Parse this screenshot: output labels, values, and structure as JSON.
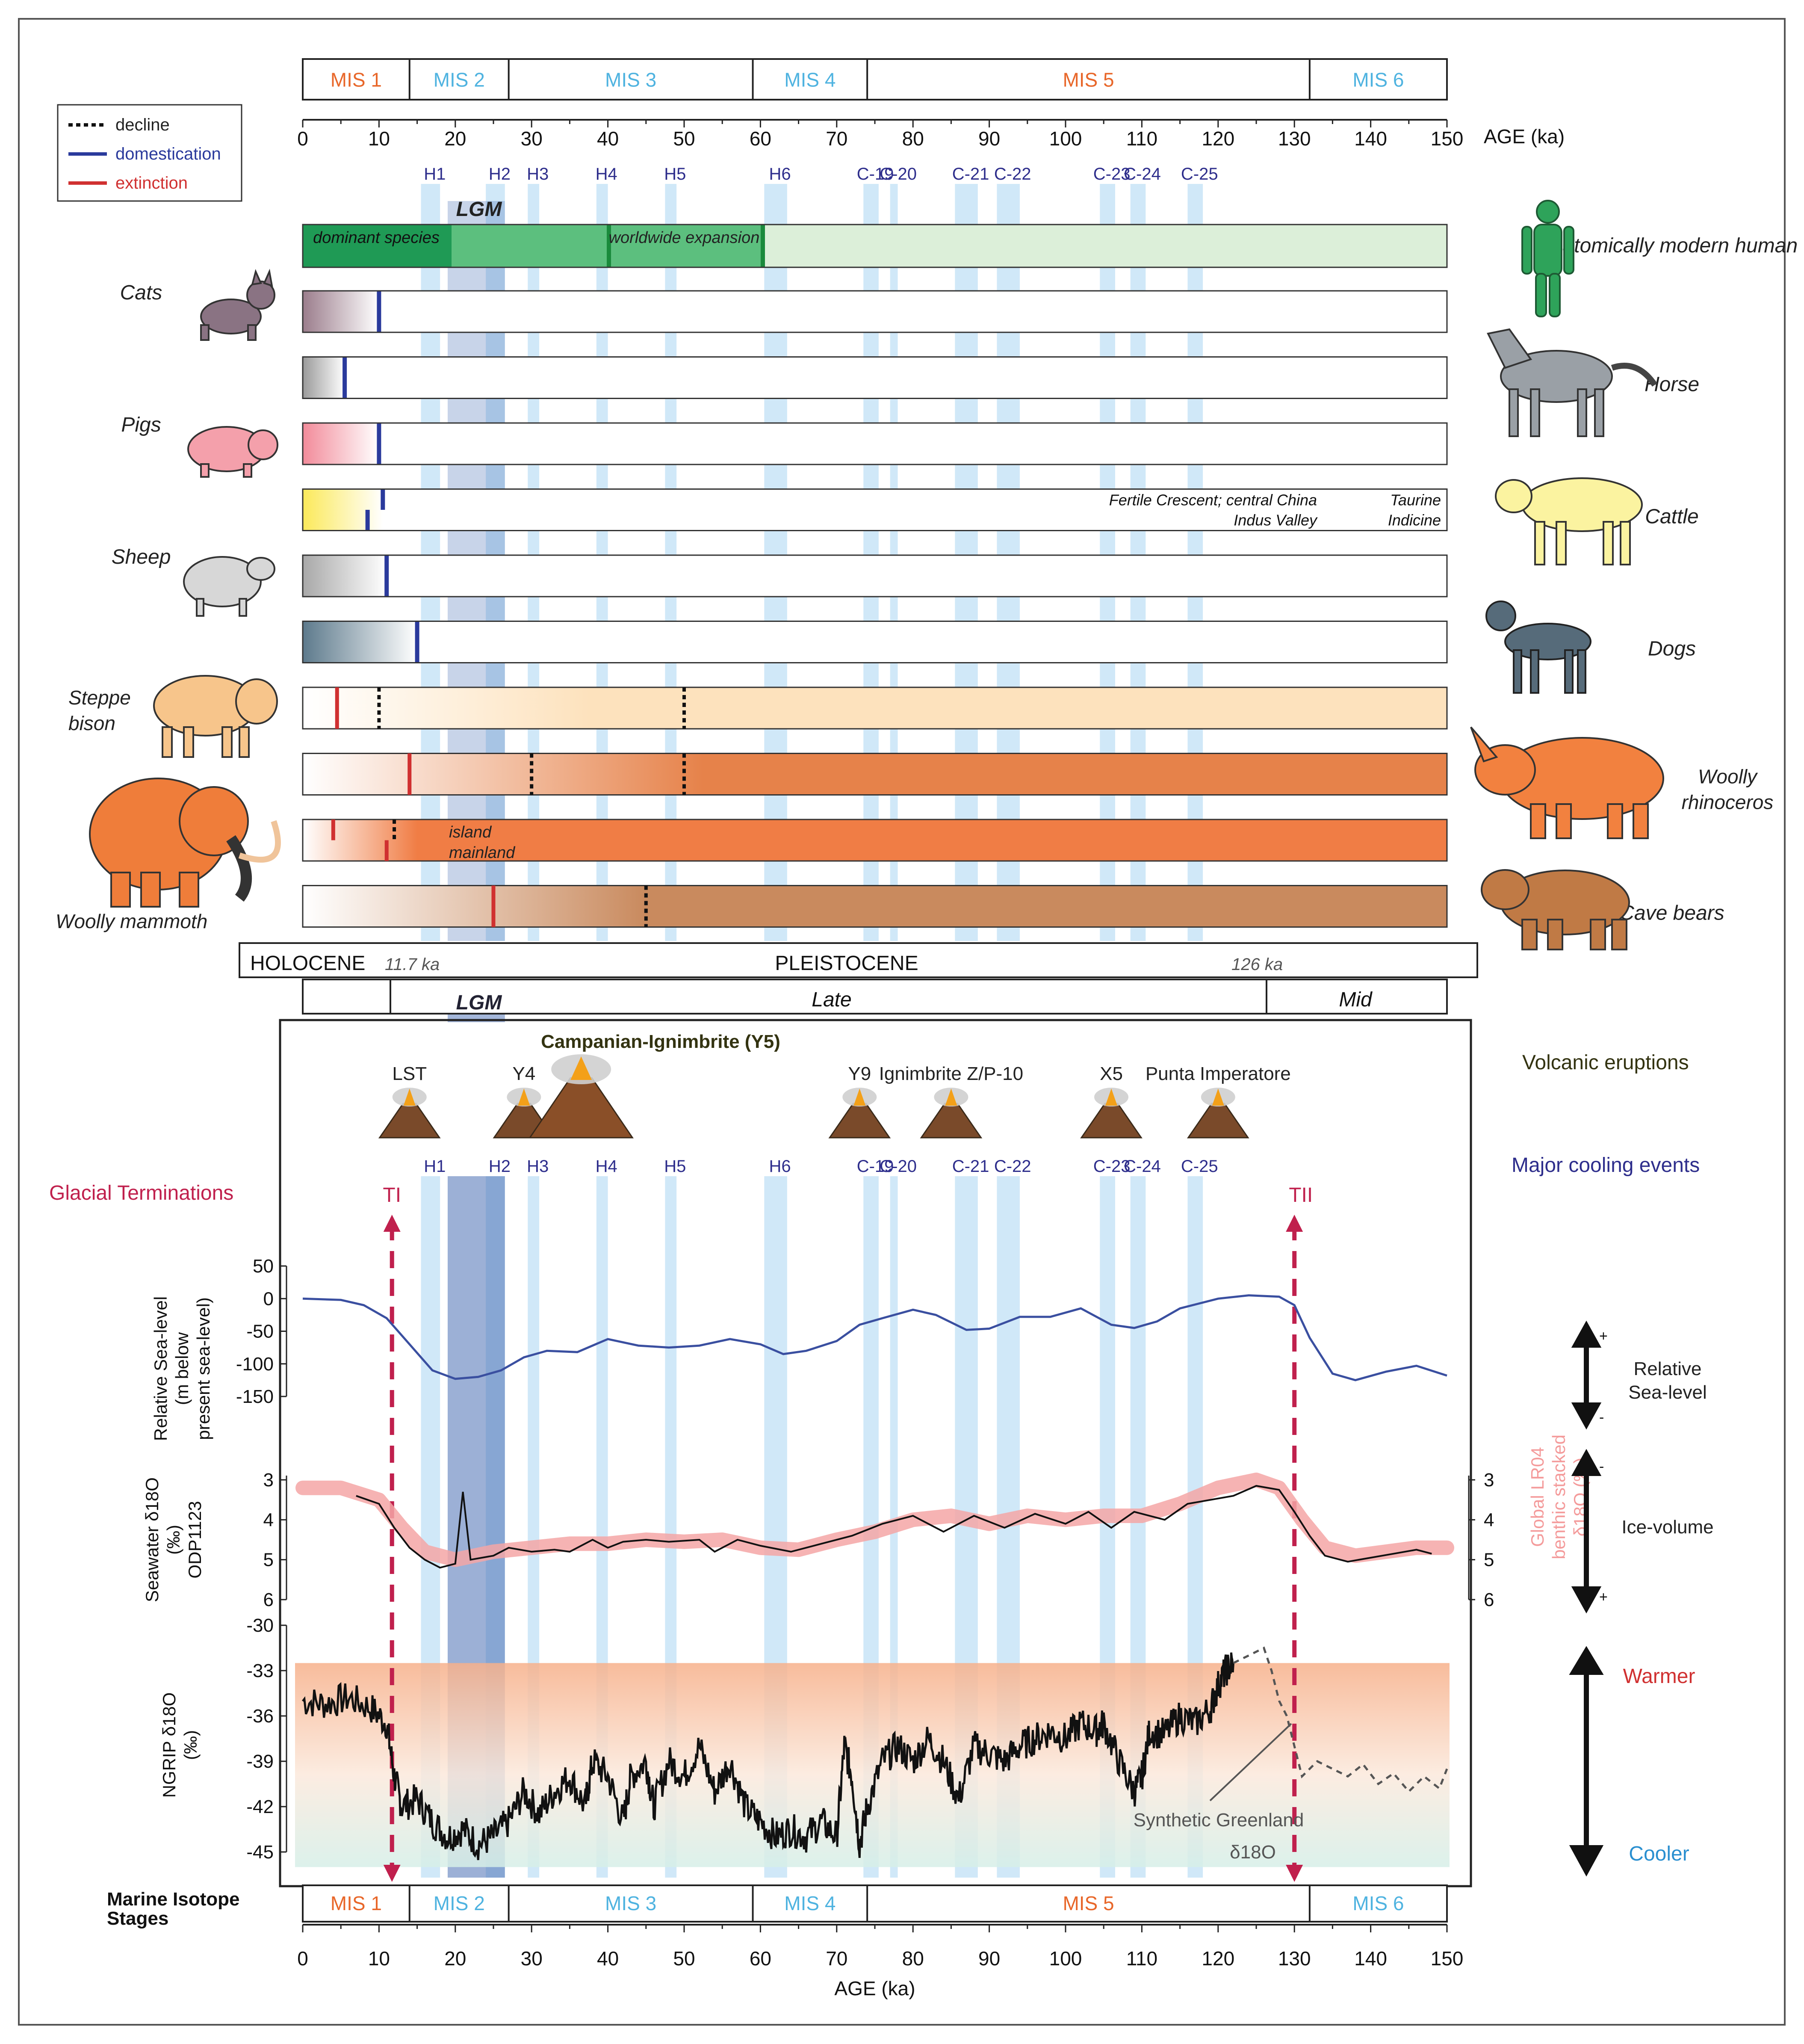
{
  "colors": {
    "band": "#a9d5f2",
    "lgm": "#4a6fb5",
    "mis_warm": "#e8672a",
    "mis_cold": "#4fb3e0",
    "ticks_blue": "#2e2e8c",
    "red": "#d03030",
    "crimson": "#c0204d",
    "sea": "#3a4fa0",
    "lr04": "#f4a6a6",
    "human_dark": "#1f9a55",
    "human_mid": "#5cbf7e",
    "human_light": "#dcefd9"
  },
  "header": {
    "mis": [
      {
        "label": "MIS 1",
        "from": 0,
        "to": 14,
        "kind": "warm"
      },
      {
        "label": "MIS 2",
        "from": 14,
        "to": 27,
        "kind": "cold"
      },
      {
        "label": "MIS 3",
        "from": 27,
        "to": 59,
        "kind": "cold"
      },
      {
        "label": "MIS 4",
        "from": 59,
        "to": 74,
        "kind": "cold"
      },
      {
        "label": "MIS 5",
        "from": 74,
        "to": 132,
        "kind": "warm"
      },
      {
        "label": "MIS 6",
        "from": 132,
        "to": 150,
        "kind": "cold"
      }
    ],
    "age_label": "AGE (ka)",
    "ticks": [
      0,
      10,
      20,
      30,
      40,
      50,
      60,
      70,
      80,
      90,
      100,
      110,
      120,
      130,
      140,
      150
    ]
  },
  "legend": {
    "decline": "decline",
    "domestication": "domestication",
    "extinction": "extinction"
  },
  "events": [
    {
      "label": "H1",
      "from": 15.5,
      "to": 18.0
    },
    {
      "label": "H2",
      "from": 24.0,
      "to": 26.5
    },
    {
      "label": "H3",
      "from": 29.5,
      "to": 31.0
    },
    {
      "label": "H4",
      "from": 38.5,
      "to": 40.0
    },
    {
      "label": "H5",
      "from": 47.5,
      "to": 49.0
    },
    {
      "label": "H6",
      "from": 60.5,
      "to": 63.5
    },
    {
      "label": "C-19",
      "from": 73.5,
      "to": 75.5
    },
    {
      "label": "C-20",
      "from": 77.0,
      "to": 78.0
    },
    {
      "label": "C-21",
      "from": 85.5,
      "to": 88.5
    },
    {
      "label": "C-22",
      "from": 91.0,
      "to": 94.0
    },
    {
      "label": "C-23",
      "from": 104.5,
      "to": 106.5
    },
    {
      "label": "C-24",
      "from": 108.5,
      "to": 110.5
    },
    {
      "label": "C-25",
      "from": 116.0,
      "to": 118.0
    }
  ],
  "lgm": {
    "label": "LGM",
    "from": 19,
    "to": 26.5
  },
  "species": {
    "human": {
      "name": "Anatomically modern human",
      "dominant": "dominant species",
      "expansion": "worldwide expansion"
    },
    "rows": [
      {
        "name": "Cats",
        "side": "left",
        "value": 10
      },
      {
        "name": "Horse",
        "side": "right",
        "value": 5.5
      },
      {
        "name": "Pigs",
        "side": "left",
        "value": 10
      },
      {
        "name": "Cattle",
        "side": "right",
        "values": [
          10.5,
          8.5
        ],
        "note1": "Fertile Crescent; central China",
        "note2": "Indus Valley",
        "note3": "Taurine",
        "note4": "Indicine"
      },
      {
        "name": "Sheep",
        "side": "left",
        "value": 11
      },
      {
        "name": "Dogs",
        "side": "right",
        "value": 15
      },
      {
        "name": "Steppe bison",
        "side": "left",
        "extinction": 4.5,
        "declines": [
          10,
          50
        ]
      },
      {
        "name": "Woolly rhinoceros",
        "side": "right",
        "extinction": 14,
        "declines": [
          30,
          50
        ]
      },
      {
        "name": "Woolly mammoth",
        "side": "left",
        "extinction": [
          4,
          11
        ],
        "declines": [
          12
        ],
        "note1": "island",
        "note2": "mainland"
      },
      {
        "name": "Cave bears",
        "side": "right",
        "extinction": 25,
        "declines": [
          45
        ]
      }
    ]
  },
  "epochs": {
    "holocene": "HOLOCENE",
    "holocene_age": "11.7 ka",
    "pleistocene": "PLEISTOCENE",
    "pleistocene_age": "126 ka",
    "late": "Late",
    "mid": "Mid"
  },
  "volcanic": {
    "title": "Volcanic eruptions",
    "main": "Campanian-Ignimbrite (Y5)",
    "items": [
      {
        "label": "LST",
        "age": 14
      },
      {
        "label": "Y4",
        "age": 29
      },
      {
        "label": "Y9",
        "age": 73
      },
      {
        "label": "Ignimbrite Z/P-10",
        "age": 85
      },
      {
        "label": "X5",
        "age": 106
      },
      {
        "label": "Punta Imperatore",
        "age": 120
      }
    ]
  },
  "cooling_title": "Major cooling events",
  "terminations": {
    "title": "Glacial Terminations",
    "TI": "TI",
    "TII": "TII",
    "TI_age": 11.7,
    "TII_age": 130
  },
  "sea_level": {
    "ylabel1": "Relative Sea-level",
    "ylabel2": "(m below",
    "ylabel3": "present sea-level)",
    "ticks": [
      50,
      0,
      -50,
      -100,
      -150
    ],
    "right_label1": "Relative",
    "right_label2": "Sea-level",
    "points": [
      [
        0,
        0
      ],
      [
        5,
        -2
      ],
      [
        8,
        -10
      ],
      [
        11,
        -30
      ],
      [
        14,
        -70
      ],
      [
        17,
        -110
      ],
      [
        20,
        -123
      ],
      [
        23,
        -120
      ],
      [
        26,
        -110
      ],
      [
        29,
        -90
      ],
      [
        32,
        -80
      ],
      [
        36,
        -82
      ],
      [
        40,
        -62
      ],
      [
        44,
        -72
      ],
      [
        48,
        -75
      ],
      [
        52,
        -72
      ],
      [
        56,
        -62
      ],
      [
        60,
        -70
      ],
      [
        63,
        -85
      ],
      [
        66,
        -80
      ],
      [
        70,
        -65
      ],
      [
        73,
        -40
      ],
      [
        76,
        -30
      ],
      [
        80,
        -17
      ],
      [
        83,
        -25
      ],
      [
        87,
        -48
      ],
      [
        90,
        -46
      ],
      [
        94,
        -28
      ],
      [
        98,
        -28
      ],
      [
        102,
        -15
      ],
      [
        106,
        -40
      ],
      [
        109,
        -45
      ],
      [
        112,
        -35
      ],
      [
        115,
        -15
      ],
      [
        120,
        0
      ],
      [
        124,
        5
      ],
      [
        128,
        3
      ],
      [
        130,
        -10
      ],
      [
        132,
        -60
      ],
      [
        135,
        -115
      ],
      [
        138,
        -125
      ],
      [
        142,
        -112
      ],
      [
        146,
        -103
      ],
      [
        150,
        -118
      ]
    ]
  },
  "seawater": {
    "ylabel1": "Seawater δ18O",
    "ylabel2": "(‰)",
    "ylabel3": "ODP1123",
    "ticks": [
      3,
      4,
      5,
      6
    ],
    "right_ticks": [
      3,
      4,
      5,
      6
    ],
    "right_label1": "Global LR04",
    "right_label2": "benthic stacked",
    "right_label3": "δ18O (‰)",
    "ice_label": "Ice-volume",
    "lr04": [
      [
        0,
        3.2
      ],
      [
        5,
        3.2
      ],
      [
        10,
        3.5
      ],
      [
        13,
        4.2
      ],
      [
        16,
        4.8
      ],
      [
        20,
        5.0
      ],
      [
        25,
        4.8
      ],
      [
        30,
        4.7
      ],
      [
        35,
        4.6
      ],
      [
        40,
        4.6
      ],
      [
        45,
        4.5
      ],
      [
        50,
        4.55
      ],
      [
        55,
        4.5
      ],
      [
        60,
        4.7
      ],
      [
        65,
        4.75
      ],
      [
        70,
        4.5
      ],
      [
        75,
        4.3
      ],
      [
        80,
        4.0
      ],
      [
        85,
        3.9
      ],
      [
        90,
        4.1
      ],
      [
        95,
        3.9
      ],
      [
        100,
        4.0
      ],
      [
        105,
        3.9
      ],
      [
        110,
        3.9
      ],
      [
        115,
        3.6
      ],
      [
        120,
        3.2
      ],
      [
        125,
        3.0
      ],
      [
        128,
        3.2
      ],
      [
        131,
        4.0
      ],
      [
        134,
        4.7
      ],
      [
        138,
        4.9
      ],
      [
        142,
        4.8
      ],
      [
        146,
        4.7
      ],
      [
        150,
        4.7
      ]
    ],
    "odp": [
      [
        7,
        3.4
      ],
      [
        10,
        3.6
      ],
      [
        12,
        4.2
      ],
      [
        14,
        4.7
      ],
      [
        16,
        5.0
      ],
      [
        18,
        5.2
      ],
      [
        20,
        5.1
      ],
      [
        21,
        3.3
      ],
      [
        22,
        5.0
      ],
      [
        25,
        4.9
      ],
      [
        27,
        4.7
      ],
      [
        30,
        4.8
      ],
      [
        33,
        4.75
      ],
      [
        35,
        4.8
      ],
      [
        38,
        4.5
      ],
      [
        40,
        4.7
      ],
      [
        42,
        4.55
      ],
      [
        45,
        4.5
      ],
      [
        48,
        4.55
      ],
      [
        52,
        4.5
      ],
      [
        54,
        4.8
      ],
      [
        57,
        4.5
      ],
      [
        60,
        4.65
      ],
      [
        64,
        4.8
      ],
      [
        68,
        4.6
      ],
      [
        72,
        4.4
      ],
      [
        76,
        4.1
      ],
      [
        80,
        3.9
      ],
      [
        84,
        4.3
      ],
      [
        88,
        3.9
      ],
      [
        92,
        4.2
      ],
      [
        96,
        3.85
      ],
      [
        100,
        4.1
      ],
      [
        103,
        3.8
      ],
      [
        106,
        4.2
      ],
      [
        109,
        3.8
      ],
      [
        113,
        4.0
      ],
      [
        116,
        3.6
      ],
      [
        119,
        3.5
      ],
      [
        122,
        3.4
      ],
      [
        125,
        3.15
      ],
      [
        128,
        3.25
      ],
      [
        130,
        3.8
      ],
      [
        132,
        4.4
      ],
      [
        134,
        4.9
      ],
      [
        137,
        5.05
      ],
      [
        140,
        4.95
      ],
      [
        143,
        4.85
      ],
      [
        146,
        4.75
      ],
      [
        148,
        4.85
      ]
    ]
  },
  "ngrip": {
    "ylabel1": "NGRIP δ18O",
    "ylabel2": "(‰)",
    "ticks": [
      -30,
      -33,
      -36,
      -39,
      -42,
      -45
    ],
    "warmer": "Warmer",
    "cooler": "Cooler",
    "synthetic_label1": "Synthetic Greenland",
    "synthetic_label2": "δ18O",
    "points": [
      [
        0,
        -35
      ],
      [
        3,
        -35.2
      ],
      [
        6,
        -34.8
      ],
      [
        9,
        -35.5
      ],
      [
        11,
        -36.5
      ],
      [
        12,
        -40
      ],
      [
        13,
        -42
      ],
      [
        15,
        -41.5
      ],
      [
        17,
        -43
      ],
      [
        19,
        -44
      ],
      [
        21,
        -43.5
      ],
      [
        23,
        -44.5
      ],
      [
        25,
        -44
      ],
      [
        27,
        -43
      ],
      [
        29,
        -41
      ],
      [
        31,
        -42.5
      ],
      [
        33,
        -41
      ],
      [
        35,
        -40
      ],
      [
        37,
        -42
      ],
      [
        38,
        -39
      ],
      [
        40,
        -40
      ],
      [
        42,
        -43
      ],
      [
        43,
        -40
      ],
      [
        45,
        -39
      ],
      [
        46,
        -42
      ],
      [
        48,
        -39
      ],
      [
        50,
        -40
      ],
      [
        52,
        -38
      ],
      [
        54,
        -41
      ],
      [
        56,
        -39
      ],
      [
        58,
        -42
      ],
      [
        60,
        -43
      ],
      [
        62,
        -44
      ],
      [
        64,
        -43.5
      ],
      [
        66,
        -44
      ],
      [
        68,
        -43
      ],
      [
        70,
        -44
      ],
      [
        71,
        -38
      ],
      [
        72,
        -40
      ],
      [
        73,
        -44.5
      ],
      [
        74,
        -42
      ],
      [
        76,
        -39
      ],
      [
        78,
        -38
      ],
      [
        80,
        -39
      ],
      [
        82,
        -37.5
      ],
      [
        84,
        -39
      ],
      [
        86,
        -41.5
      ],
      [
        88,
        -38
      ],
      [
        90,
        -38.5
      ],
      [
        92,
        -39
      ],
      [
        94,
        -38
      ],
      [
        96,
        -37.5
      ],
      [
        98,
        -37
      ],
      [
        100,
        -37.5
      ],
      [
        102,
        -36.5
      ],
      [
        104,
        -37
      ],
      [
        105,
        -36.5
      ],
      [
        107,
        -39
      ],
      [
        109,
        -41
      ],
      [
        110,
        -40
      ],
      [
        111,
        -37
      ],
      [
        113,
        -37.2
      ],
      [
        115,
        -36
      ],
      [
        117,
        -36.5
      ],
      [
        119,
        -35.5
      ],
      [
        120,
        -34
      ],
      [
        121,
        -33
      ],
      [
        122,
        -32.5
      ]
    ],
    "synthetic": [
      [
        122,
        -32.5
      ],
      [
        124,
        -32
      ],
      [
        126,
        -31.5
      ],
      [
        127,
        -33
      ],
      [
        128,
        -35
      ],
      [
        129,
        -36
      ],
      [
        130,
        -38
      ],
      [
        131,
        -40
      ],
      [
        133,
        -39
      ],
      [
        135,
        -39.5
      ],
      [
        137,
        -40
      ],
      [
        139,
        -39.2
      ],
      [
        141,
        -40.5
      ],
      [
        143,
        -39.8
      ],
      [
        145,
        -41
      ],
      [
        147,
        -40
      ],
      [
        149,
        -40.8
      ],
      [
        150,
        -39.5
      ]
    ]
  },
  "bottom": {
    "label1": "Marine Isotope",
    "label2": "Stages",
    "age_label": "AGE (ka)"
  }
}
